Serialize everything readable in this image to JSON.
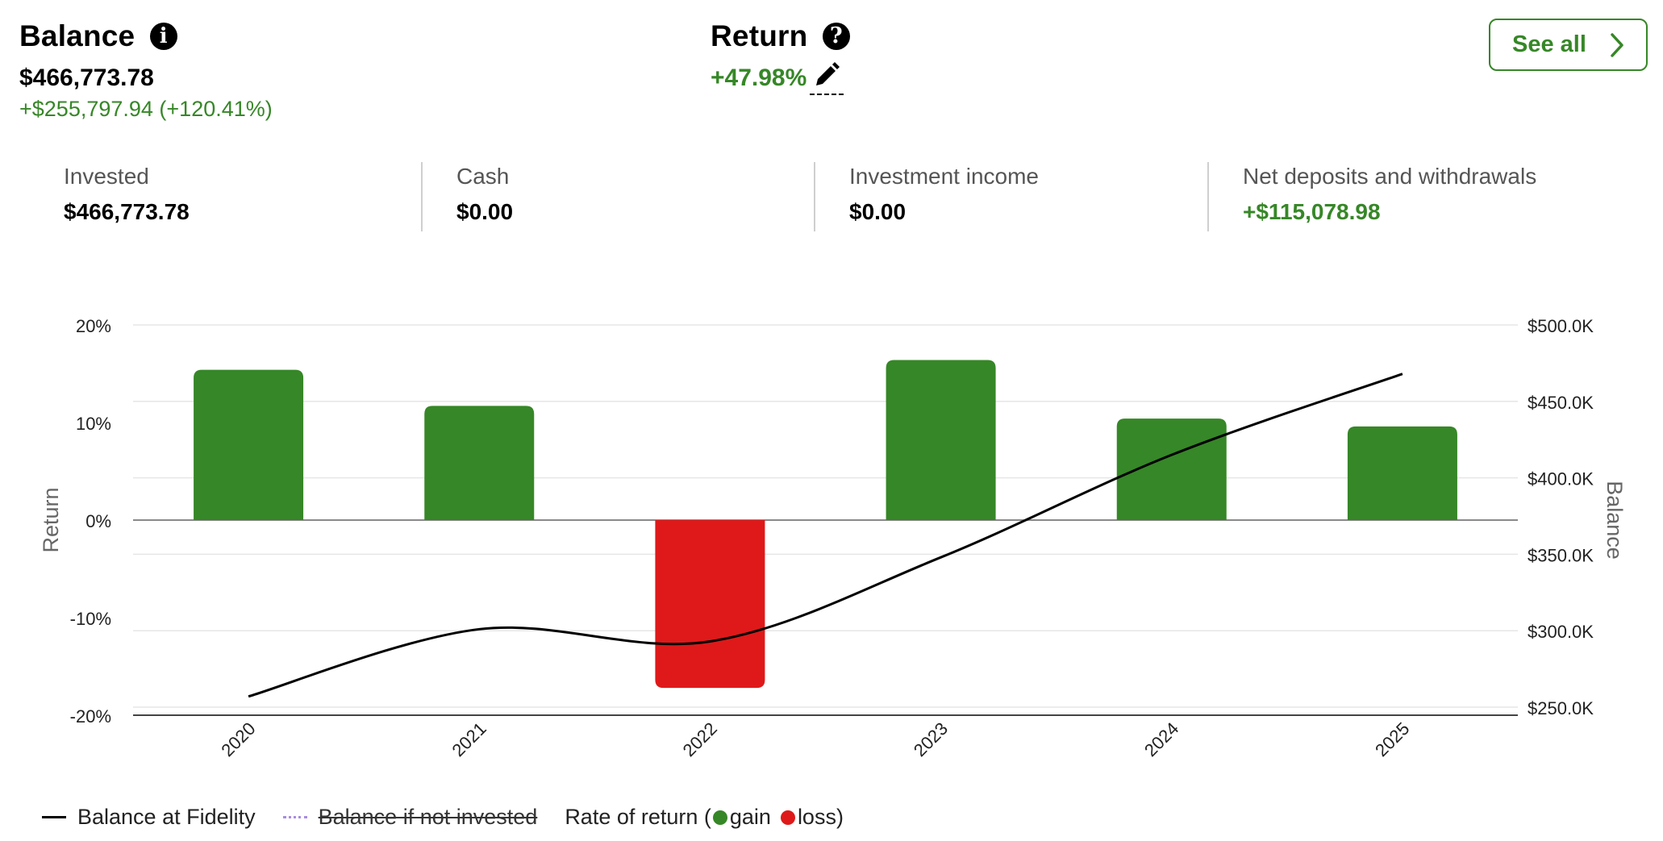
{
  "balance": {
    "title": "Balance",
    "value": "$466,773.78",
    "change": "+$255,797.94 (+120.41%)"
  },
  "return": {
    "title": "Return",
    "value": "+47.98%"
  },
  "see_all_label": "See all",
  "stats": [
    {
      "label": "Invested",
      "value": "$466,773.78"
    },
    {
      "label": "Cash",
      "value": "$0.00"
    },
    {
      "label": "Investment income",
      "value": "$0.00"
    },
    {
      "label": "Net deposits and withdrawals",
      "value": "+$115,078.98"
    }
  ],
  "legend": {
    "balance_line": "Balance at Fidelity",
    "not_invested": "Balance if not invested",
    "rate_prefix": "Rate of return (",
    "gain": "gain",
    "loss": "loss)"
  },
  "colors": {
    "gain": "#368727",
    "loss": "#df1919",
    "line": "#000000",
    "not_invested": "#a98de0"
  },
  "chart_data": {
    "type": "bar",
    "categories": [
      "2020",
      "2021",
      "2022",
      "2023",
      "2024",
      "2025"
    ],
    "series": [
      {
        "name": "Rate of return",
        "axis": "left",
        "type": "bar",
        "values": [
          15.4,
          11.7,
          -17.2,
          16.4,
          10.4,
          9.6
        ]
      },
      {
        "name": "Balance at Fidelity",
        "axis": "right",
        "type": "line",
        "values": [
          257000,
          301000,
          293000,
          348000,
          415000,
          468000
        ]
      }
    ],
    "ylabel": "Return",
    "y2label": "Balance",
    "ylim": [
      -20,
      20
    ],
    "y2lim": [
      250000,
      500000
    ],
    "yticks": [
      "-20%",
      "-10%",
      "0%",
      "10%",
      "20%"
    ],
    "y2ticks": [
      "$250.0K",
      "$300.0K",
      "$350.0K",
      "$400.0K",
      "$450.0K",
      "$500.0K"
    ],
    "grid": true
  }
}
